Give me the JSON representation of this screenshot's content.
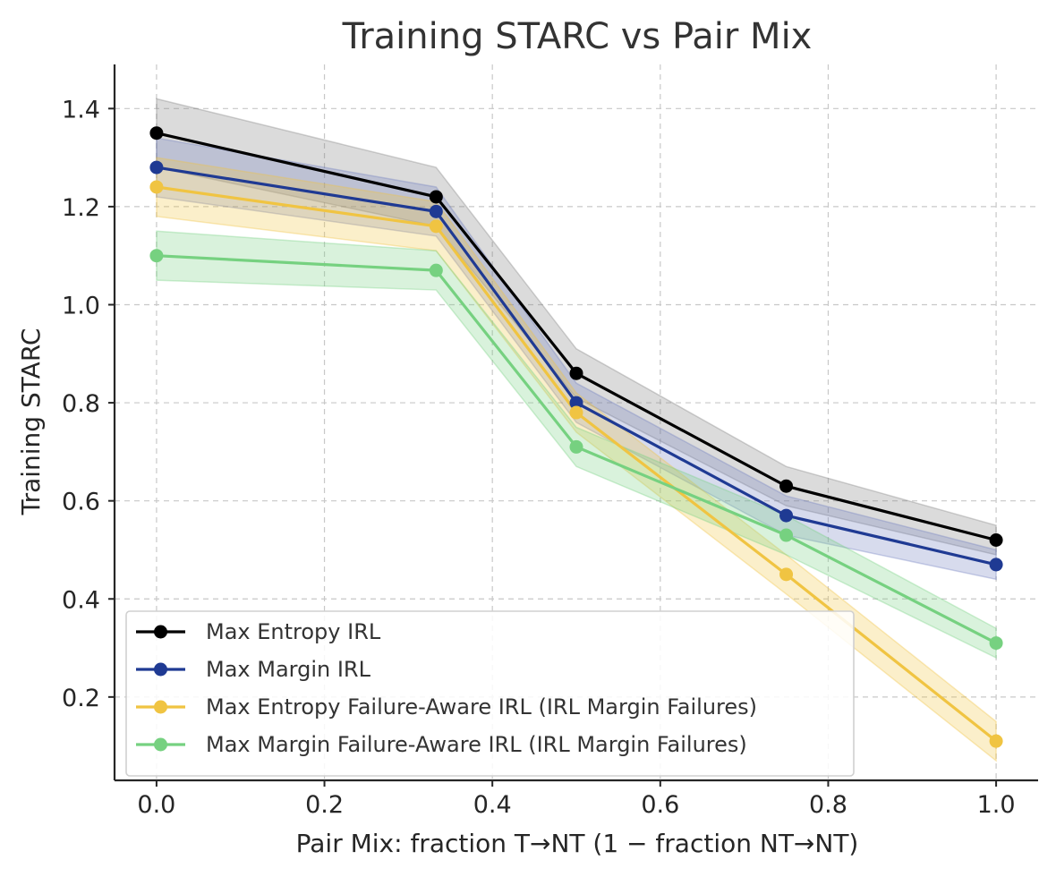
{
  "chart_data": {
    "type": "line",
    "title": "Training STARC vs Pair Mix",
    "xlabel": "Pair Mix: fraction T→NT (1 − fraction NT→NT)",
    "ylabel": "Training STARC",
    "xlim": [
      -0.05,
      1.05
    ],
    "ylim": [
      0.03,
      1.49
    ],
    "xticks": [
      0.0,
      0.2,
      0.4,
      0.6,
      0.8,
      1.0
    ],
    "xtick_labels": [
      "0.0",
      "0.2",
      "0.4",
      "0.6",
      "0.8",
      "1.0"
    ],
    "yticks": [
      0.2,
      0.4,
      0.6,
      0.8,
      1.0,
      1.2,
      1.4
    ],
    "ytick_labels": [
      "0.2",
      "0.4",
      "0.6",
      "0.8",
      "1.0",
      "1.2",
      "1.4"
    ],
    "grid": true,
    "legend_position": "lower-left",
    "x": [
      0.0,
      0.333,
      0.5,
      0.75,
      1.0
    ],
    "series": [
      {
        "name": "Max Entropy IRL",
        "color": "#000000",
        "band_color": "#7f7f7f",
        "values": [
          1.35,
          1.22,
          0.86,
          0.63,
          0.52
        ],
        "lower": [
          1.28,
          1.16,
          0.81,
          0.59,
          0.49
        ],
        "upper": [
          1.42,
          1.28,
          0.91,
          0.67,
          0.55
        ]
      },
      {
        "name": "Max Margin IRL",
        "color": "#1f3a93",
        "band_color": "#6f7fc0",
        "values": [
          1.28,
          1.19,
          0.8,
          0.57,
          0.47
        ],
        "lower": [
          1.22,
          1.14,
          0.76,
          0.53,
          0.44
        ],
        "upper": [
          1.34,
          1.24,
          0.84,
          0.61,
          0.5
        ]
      },
      {
        "name": "Max Entropy Failure-Aware IRL (IRL Margin Failures)",
        "color": "#f0c442",
        "band_color": "#f0c442",
        "values": [
          1.24,
          1.16,
          0.78,
          0.45,
          0.11
        ],
        "lower": [
          1.18,
          1.11,
          0.74,
          0.41,
          0.07
        ],
        "upper": [
          1.3,
          1.21,
          0.82,
          0.49,
          0.15
        ]
      },
      {
        "name": "Max Margin Failure-Aware IRL (IRL Margin Failures)",
        "color": "#76d180",
        "band_color": "#76d180",
        "values": [
          1.1,
          1.07,
          0.71,
          0.53,
          0.31
        ],
        "lower": [
          1.05,
          1.03,
          0.67,
          0.49,
          0.28
        ],
        "upper": [
          1.15,
          1.11,
          0.75,
          0.57,
          0.34
        ]
      }
    ]
  }
}
